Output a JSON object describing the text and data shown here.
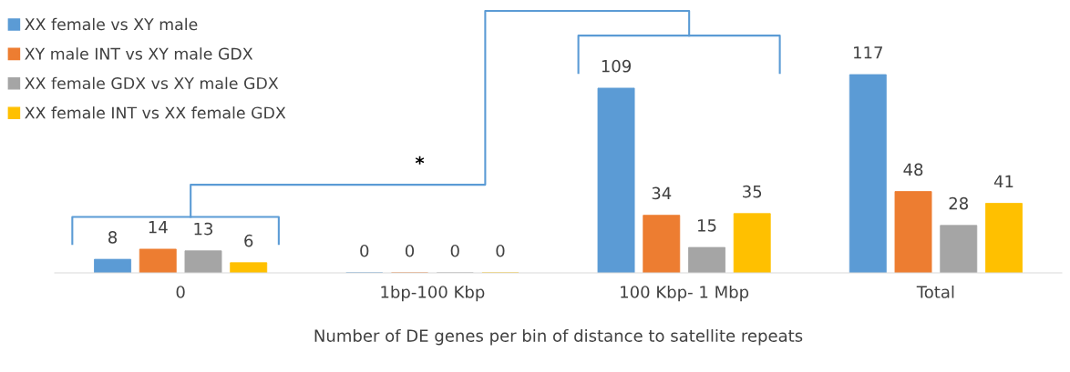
{
  "chart_data": {
    "type": "bar",
    "xlabel": "Number of DE genes per bin of distance to satellite repeats",
    "categories": [
      "0",
      "1bp-100 Kbp",
      "100 Kbp- 1 Mbp",
      "Total"
    ],
    "series": [
      {
        "name": "XX female vs XY male",
        "color": "#5b9bd5",
        "values": [
          8,
          0,
          109,
          117
        ]
      },
      {
        "name": "XY male INT vs XY male GDX",
        "color": "#ed7d31",
        "values": [
          14,
          0,
          34,
          48
        ]
      },
      {
        "name": "XX female GDX vs XY male GDX",
        "color": "#a5a5a5",
        "values": [
          13,
          0,
          15,
          28
        ]
      },
      {
        "name": "XX female INT vs XX female GDX",
        "color": "#ffc000",
        "values": [
          6,
          0,
          35,
          41
        ]
      }
    ],
    "data_labels": true,
    "legend": "top left",
    "grid": false,
    "annotations": [
      "*"
    ]
  }
}
